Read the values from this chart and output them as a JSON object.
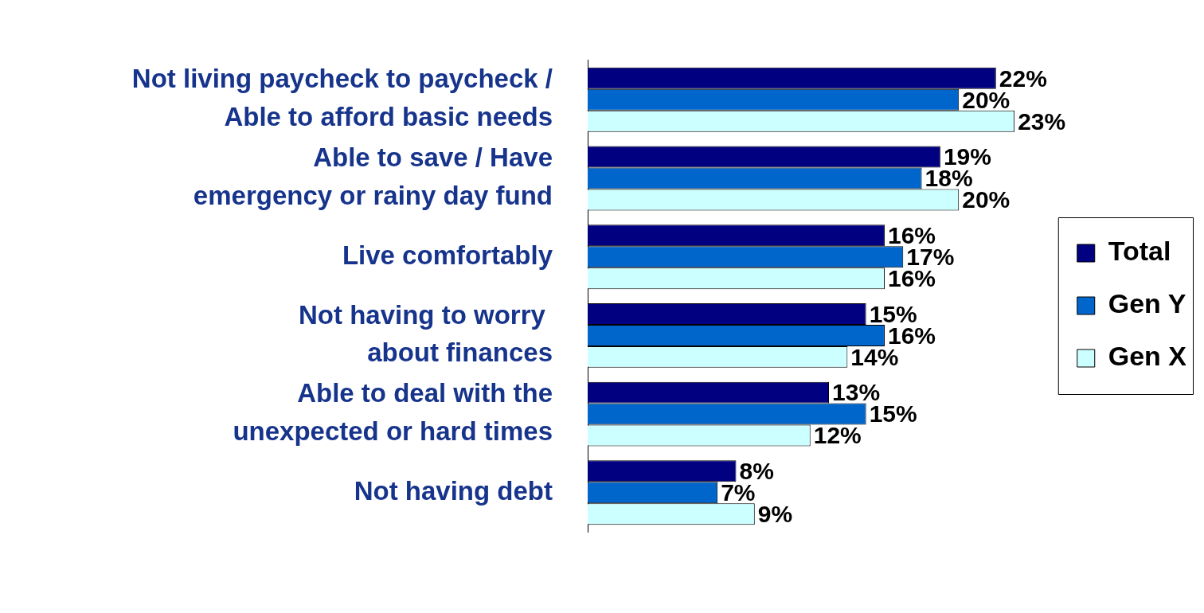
{
  "chart_data": {
    "type": "bar",
    "orientation": "horizontal",
    "categories": [
      "Not living paycheck to paycheck /\nAble to afford basic needs",
      "Able to save / Have\nemergency or rainy day fund",
      "Live comfortably",
      "Not having to worry \nabout finances",
      "Able to deal with the\nunexpected or hard times",
      "Not having debt"
    ],
    "series": [
      {
        "name": "Total",
        "color": "#000080",
        "values": [
          22,
          19,
          16,
          15,
          13,
          8
        ],
        "value_labels": [
          "22%",
          "19%",
          "16%",
          "15%",
          "13%",
          "8%"
        ]
      },
      {
        "name": "Gen Y",
        "color": "#0066cc",
        "values": [
          20,
          18,
          17,
          16,
          15,
          7
        ],
        "value_labels": [
          "20%",
          "18%",
          "17%",
          "16%",
          "15%",
          "7%"
        ]
      },
      {
        "name": "Gen X",
        "color": "#ccffff",
        "values": [
          23,
          20,
          16,
          14,
          12,
          9
        ],
        "value_labels": [
          "23%",
          "20%",
          "16%",
          "14%",
          "12%",
          "9%"
        ]
      }
    ],
    "legend": "right",
    "grid": false
  }
}
